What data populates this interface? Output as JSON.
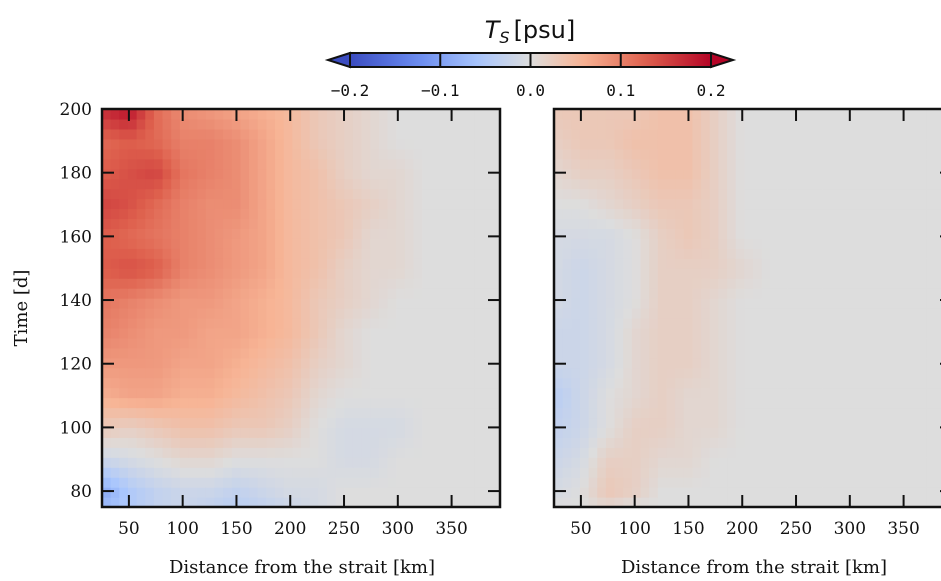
{
  "chart_data": {
    "type": "heatmap",
    "colorbar": {
      "title": "T_S [psu]",
      "title_main": "T",
      "title_sub": "S",
      "title_unit": "[psu]",
      "range": [
        -0.2,
        0.2
      ],
      "ticks": [
        -0.2,
        -0.1,
        0.0,
        0.1,
        0.2
      ],
      "tick_labels": [
        "−0.2",
        "−0.1",
        "0.0",
        "0.1",
        "0.2"
      ],
      "colormap": "coolwarm",
      "extend": "both",
      "colors": {
        "low": "#3b4cc0",
        "mid": "#dddddd",
        "high": "#b40426"
      }
    },
    "panels": [
      {
        "name": "left",
        "xlabel": "Distance from the strait [km]",
        "ylabel": "Time [d]",
        "xlim": [
          25,
          395
        ],
        "ylim": [
          75,
          200
        ],
        "xticks": [
          50,
          100,
          150,
          200,
          250,
          300,
          350
        ],
        "xtick_labels": [
          "50",
          "100",
          "150",
          "200",
          "250",
          "300",
          "350"
        ],
        "yticks": [
          80,
          100,
          120,
          140,
          160,
          180,
          200
        ],
        "ytick_labels": [
          "80",
          "100",
          "120",
          "140",
          "160",
          "180",
          "200"
        ],
        "x_nodes": [
          25,
          50,
          75,
          100,
          125,
          150,
          175,
          200,
          225,
          250,
          275,
          300,
          325,
          350,
          395
        ],
        "y_nodes": [
          75,
          80,
          90,
          100,
          110,
          120,
          130,
          140,
          150,
          160,
          170,
          180,
          190,
          200
        ],
        "z": [
          [
            -0.07,
            -0.05,
            -0.03,
            -0.02,
            -0.03,
            -0.04,
            -0.03,
            -0.02,
            -0.01,
            0.0,
            0.0,
            0.0,
            0.0,
            0.0,
            0.0
          ],
          [
            -0.09,
            -0.05,
            -0.03,
            -0.02,
            -0.02,
            -0.03,
            -0.02,
            -0.01,
            -0.01,
            0.0,
            0.0,
            0.0,
            0.0,
            0.0,
            0.0
          ],
          [
            -0.02,
            -0.01,
            0.0,
            0.01,
            0.01,
            0.0,
            0.0,
            0.0,
            0.0,
            -0.01,
            -0.01,
            0.0,
            0.0,
            0.0,
            0.0
          ],
          [
            0.03,
            0.02,
            0.03,
            0.04,
            0.04,
            0.03,
            0.03,
            0.02,
            0.0,
            -0.01,
            -0.01,
            -0.01,
            0.0,
            0.0,
            0.0
          ],
          [
            0.06,
            0.07,
            0.07,
            0.06,
            0.06,
            0.05,
            0.04,
            0.03,
            0.01,
            0.0,
            0.0,
            0.0,
            0.0,
            0.0,
            0.0
          ],
          [
            0.08,
            0.08,
            0.08,
            0.07,
            0.07,
            0.06,
            0.05,
            0.04,
            0.02,
            0.01,
            0.0,
            0.0,
            0.0,
            0.0,
            0.0
          ],
          [
            0.1,
            0.09,
            0.08,
            0.08,
            0.07,
            0.07,
            0.06,
            0.05,
            0.03,
            0.01,
            0.0,
            0.0,
            0.0,
            0.0,
            0.0
          ],
          [
            0.11,
            0.1,
            0.09,
            0.08,
            0.08,
            0.07,
            0.06,
            0.05,
            0.03,
            0.02,
            0.01,
            0.0,
            0.0,
            0.0,
            0.0
          ],
          [
            0.13,
            0.14,
            0.13,
            0.1,
            0.09,
            0.08,
            0.07,
            0.05,
            0.04,
            0.02,
            0.01,
            0.01,
            0.0,
            0.0,
            0.0
          ],
          [
            0.13,
            0.12,
            0.11,
            0.1,
            0.09,
            0.08,
            0.07,
            0.05,
            0.04,
            0.03,
            0.01,
            0.01,
            0.0,
            0.0,
            0.0
          ],
          [
            0.15,
            0.14,
            0.12,
            0.1,
            0.09,
            0.09,
            0.07,
            0.05,
            0.04,
            0.03,
            0.02,
            0.01,
            0.0,
            0.0,
            0.0
          ],
          [
            0.13,
            0.14,
            0.15,
            0.11,
            0.1,
            0.09,
            0.07,
            0.05,
            0.04,
            0.02,
            0.01,
            0.01,
            0.0,
            0.0,
            0.0
          ],
          [
            0.12,
            0.13,
            0.12,
            0.1,
            0.1,
            0.09,
            0.07,
            0.05,
            0.03,
            0.02,
            0.01,
            0.0,
            0.0,
            0.0,
            0.0
          ],
          [
            0.17,
            0.19,
            0.12,
            0.09,
            0.08,
            0.07,
            0.06,
            0.05,
            0.03,
            0.02,
            0.01,
            0.0,
            0.0,
            0.0,
            0.0
          ]
        ]
      },
      {
        "name": "right",
        "xlabel": "Distance from the strait [km]",
        "ylabel": "",
        "xlim": [
          25,
          395
        ],
        "ylim": [
          75,
          200
        ],
        "xticks": [
          50,
          100,
          150,
          200,
          250,
          300,
          350
        ],
        "xtick_labels": [
          "50",
          "100",
          "150",
          "200",
          "250",
          "300",
          "350"
        ],
        "yticks": [
          80,
          100,
          120,
          140,
          160,
          180,
          200
        ],
        "ytick_labels": [],
        "x_nodes": [
          25,
          50,
          75,
          100,
          125,
          150,
          175,
          200,
          225,
          250,
          275,
          300,
          325,
          350,
          395
        ],
        "y_nodes": [
          75,
          80,
          90,
          100,
          110,
          120,
          130,
          140,
          150,
          160,
          170,
          180,
          190,
          200
        ],
        "z": [
          [
            0.0,
            0.0,
            0.01,
            0.0,
            0.0,
            0.0,
            0.0,
            0.0,
            0.0,
            0.0,
            0.0,
            0.0,
            0.0,
            0.0,
            0.0
          ],
          [
            -0.01,
            0.0,
            0.03,
            0.02,
            0.0,
            0.0,
            0.0,
            0.0,
            0.0,
            0.0,
            0.0,
            0.0,
            0.0,
            0.0,
            0.0
          ],
          [
            -0.02,
            -0.01,
            0.02,
            0.02,
            0.01,
            0.01,
            0.0,
            0.0,
            0.0,
            0.0,
            0.0,
            0.0,
            0.0,
            0.0,
            0.0
          ],
          [
            -0.03,
            -0.02,
            0.0,
            0.02,
            0.02,
            0.01,
            0.01,
            0.0,
            0.0,
            0.0,
            0.0,
            0.0,
            0.0,
            0.0,
            0.0
          ],
          [
            -0.04,
            -0.02,
            0.0,
            0.01,
            0.02,
            0.01,
            0.01,
            0.0,
            0.0,
            0.0,
            0.0,
            0.0,
            0.0,
            0.0,
            0.0
          ],
          [
            -0.02,
            -0.02,
            -0.01,
            0.01,
            0.02,
            0.02,
            0.01,
            0.0,
            0.0,
            0.0,
            0.0,
            0.0,
            0.0,
            0.0,
            0.0
          ],
          [
            -0.02,
            -0.02,
            -0.01,
            0.01,
            0.02,
            0.02,
            0.01,
            0.0,
            0.0,
            0.0,
            0.0,
            0.0,
            0.0,
            0.0,
            0.0
          ],
          [
            -0.01,
            -0.02,
            -0.01,
            0.0,
            0.02,
            0.02,
            0.01,
            0.0,
            0.0,
            0.0,
            0.0,
            0.0,
            0.0,
            0.0,
            0.0
          ],
          [
            -0.01,
            -0.02,
            -0.01,
            0.0,
            0.02,
            0.02,
            0.02,
            0.01,
            0.0,
            0.0,
            0.0,
            0.0,
            0.0,
            0.0,
            0.0
          ],
          [
            -0.01,
            -0.01,
            -0.01,
            0.0,
            0.02,
            0.03,
            0.02,
            0.0,
            0.0,
            0.0,
            0.0,
            0.0,
            0.0,
            0.0,
            0.0
          ],
          [
            0.0,
            0.0,
            0.01,
            0.02,
            0.03,
            0.03,
            0.02,
            0.0,
            0.0,
            0.0,
            0.0,
            0.0,
            0.0,
            0.0,
            0.0
          ],
          [
            0.01,
            0.02,
            0.02,
            0.03,
            0.04,
            0.04,
            0.02,
            0.0,
            0.0,
            0.0,
            0.0,
            0.0,
            0.0,
            0.0,
            0.0
          ],
          [
            0.02,
            0.03,
            0.03,
            0.04,
            0.04,
            0.04,
            0.02,
            0.0,
            0.0,
            0.0,
            0.0,
            0.0,
            0.0,
            0.0,
            0.0
          ],
          [
            0.03,
            0.03,
            0.03,
            0.03,
            0.04,
            0.04,
            0.02,
            0.0,
            0.0,
            0.0,
            0.0,
            0.0,
            0.0,
            0.0,
            0.0
          ]
        ]
      }
    ]
  }
}
